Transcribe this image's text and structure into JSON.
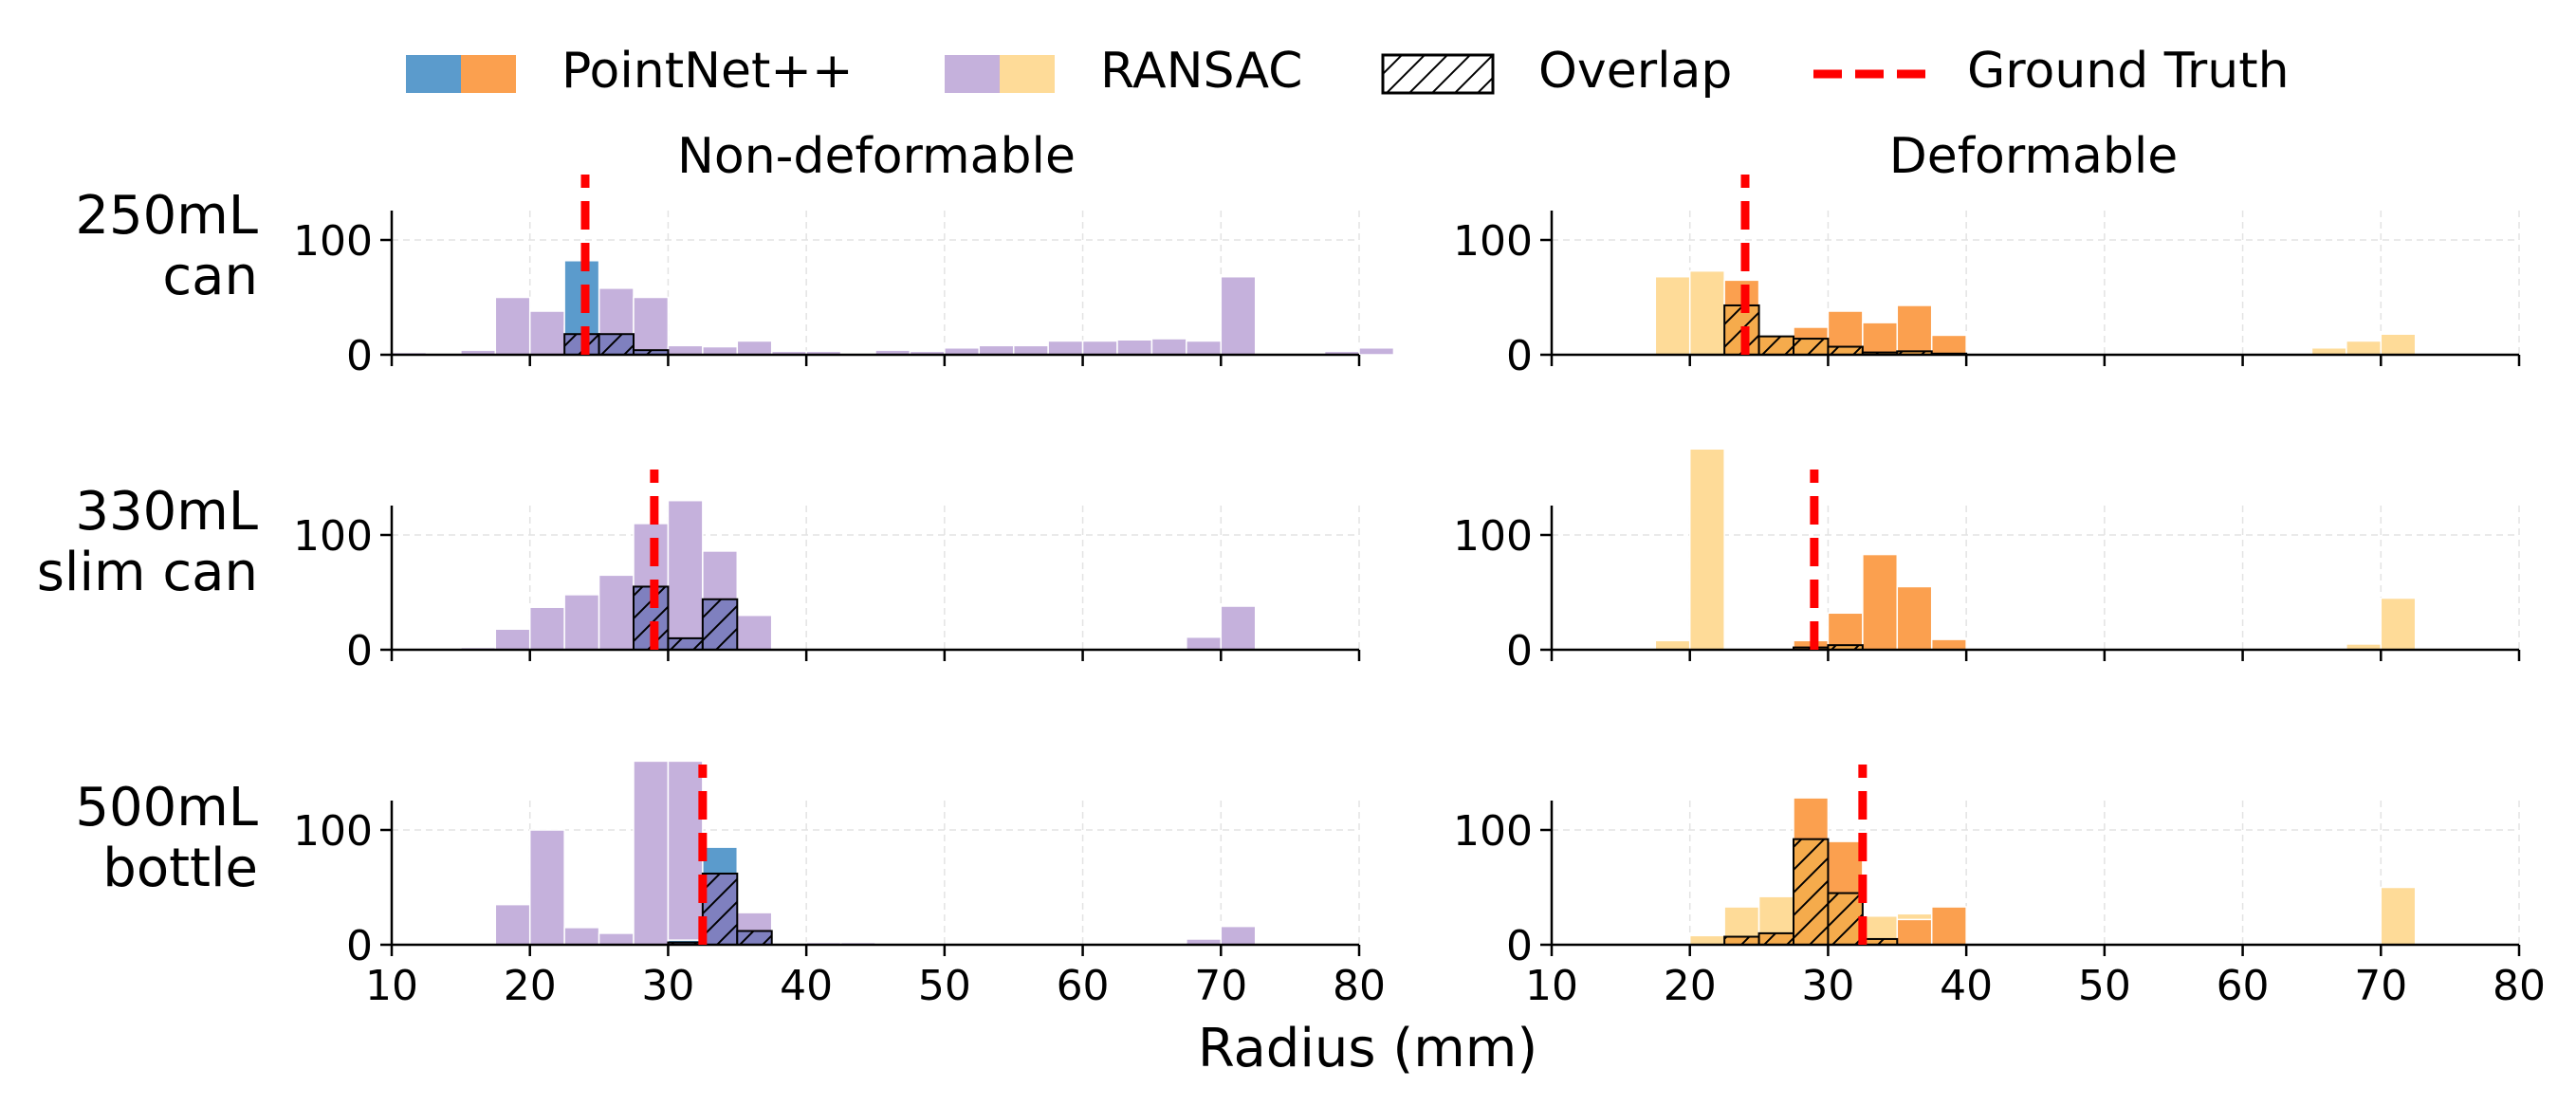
{
  "legend": {
    "pointnet_label": "PointNet++",
    "ransac_label": "RANSAC",
    "overlap_label": "Overlap",
    "gt_label": "Ground Truth"
  },
  "colors": {
    "pointnet_nondeformable": "#5b9bcc",
    "pointnet_deformable": "#fba04f",
    "ransac_nondeformable": "#c5b1dc",
    "ransac_deformable": "#fedb98",
    "overlap_nondeformable": "#7f80bf",
    "overlap_deformable": "#f5ab4c",
    "ground_truth": "#ff0000"
  },
  "columns": [
    "Non-deformable",
    "Deformable"
  ],
  "rows": [
    {
      "line1": "250mL",
      "line2": "can"
    },
    {
      "line1": "330mL",
      "line2": "slim can"
    },
    {
      "line1": "500mL",
      "line2": "bottle"
    }
  ],
  "xlabel": "Radius (mm)",
  "chart_data": {
    "type": "bar",
    "subtype": "overlaid histogram grid (3 rows x 2 columns)",
    "bin_width": 2.5,
    "xlim": [
      10,
      80
    ],
    "ylim": [
      0,
      180
    ],
    "xticks": [
      10,
      20,
      30,
      40,
      50,
      60,
      70,
      80
    ],
    "yticks": [
      0,
      100
    ],
    "grid": true,
    "legend_position": "top",
    "panels": [
      {
        "row": 0,
        "col": 0,
        "ground_truth": 24,
        "ransac": [
          [
            10,
            2
          ],
          [
            15,
            4
          ],
          [
            17.5,
            50
          ],
          [
            20,
            38
          ],
          [
            22.5,
            25
          ],
          [
            25,
            58
          ],
          [
            27.5,
            50
          ],
          [
            30,
            8
          ],
          [
            32.5,
            7
          ],
          [
            35,
            12
          ],
          [
            37.5,
            3
          ],
          [
            40,
            3
          ],
          [
            45,
            4
          ],
          [
            47.5,
            3
          ],
          [
            50,
            6
          ],
          [
            52.5,
            8
          ],
          [
            55,
            8
          ],
          [
            57.5,
            12
          ],
          [
            60,
            12
          ],
          [
            62.5,
            13
          ],
          [
            65,
            14
          ],
          [
            67.5,
            12
          ],
          [
            70,
            68
          ],
          [
            77.5,
            3
          ],
          [
            80,
            6
          ]
        ],
        "pointnet": [
          [
            22.5,
            82
          ],
          [
            25,
            18
          ],
          [
            27.5,
            4
          ]
        ],
        "overlap": [
          [
            22.5,
            18
          ],
          [
            25,
            18
          ],
          [
            27.5,
            4
          ]
        ]
      },
      {
        "row": 0,
        "col": 1,
        "ground_truth": 24,
        "ransac": [
          [
            17.5,
            68
          ],
          [
            20,
            73
          ],
          [
            22.5,
            52
          ],
          [
            25,
            13
          ],
          [
            27.5,
            14
          ],
          [
            30,
            7
          ],
          [
            32.5,
            2
          ],
          [
            35,
            3
          ],
          [
            37.5,
            1
          ],
          [
            40,
            1
          ],
          [
            65,
            6
          ],
          [
            67.5,
            12
          ],
          [
            70,
            18
          ]
        ],
        "pointnet": [
          [
            22.5,
            65
          ],
          [
            25,
            16
          ],
          [
            27.5,
            24
          ],
          [
            30,
            38
          ],
          [
            32.5,
            28
          ],
          [
            35,
            43
          ],
          [
            37.5,
            17
          ]
        ],
        "overlap": [
          [
            22.5,
            43
          ],
          [
            25,
            16
          ],
          [
            27.5,
            14
          ],
          [
            30,
            7
          ],
          [
            32.5,
            2
          ],
          [
            35,
            3
          ],
          [
            37.5,
            1
          ]
        ]
      },
      {
        "row": 1,
        "col": 0,
        "ground_truth": 29,
        "ransac": [
          [
            15,
            2
          ],
          [
            17.5,
            18
          ],
          [
            20,
            37
          ],
          [
            22.5,
            48
          ],
          [
            25,
            65
          ],
          [
            27.5,
            110
          ],
          [
            30,
            130
          ],
          [
            32.5,
            86
          ],
          [
            35,
            30
          ],
          [
            67.5,
            11
          ],
          [
            70,
            38
          ]
        ],
        "pointnet": [
          [
            27.5,
            55
          ],
          [
            30,
            10
          ],
          [
            32.5,
            44
          ]
        ],
        "overlap": [
          [
            27.5,
            55
          ],
          [
            30,
            10
          ],
          [
            32.5,
            44
          ]
        ]
      },
      {
        "row": 1,
        "col": 1,
        "ground_truth": 29,
        "ransac": [
          [
            17.5,
            8
          ],
          [
            20,
            175
          ],
          [
            27.5,
            2
          ],
          [
            30,
            4
          ],
          [
            67.5,
            5
          ],
          [
            70,
            45
          ]
        ],
        "pointnet": [
          [
            27.5,
            8
          ],
          [
            30,
            32
          ],
          [
            32.5,
            83
          ],
          [
            35,
            55
          ],
          [
            37.5,
            9
          ]
        ],
        "overlap": [
          [
            27.5,
            2
          ],
          [
            30,
            4
          ]
        ]
      },
      {
        "row": 2,
        "col": 0,
        "ground_truth": 32.5,
        "ransac": [
          [
            17.5,
            35
          ],
          [
            20,
            100
          ],
          [
            22.5,
            15
          ],
          [
            25,
            10
          ],
          [
            27.5,
            160
          ],
          [
            30,
            160
          ],
          [
            32.5,
            60
          ],
          [
            35,
            28
          ],
          [
            40,
            2
          ],
          [
            42.5,
            2
          ],
          [
            67.5,
            5
          ],
          [
            70,
            16
          ]
        ],
        "pointnet": [
          [
            30,
            4
          ],
          [
            32.5,
            85
          ],
          [
            35,
            12
          ]
        ],
        "overlap": [
          [
            30,
            2
          ],
          [
            32.5,
            62
          ],
          [
            35,
            12
          ]
        ]
      },
      {
        "row": 2,
        "col": 1,
        "ground_truth": 32.5,
        "ransac": [
          [
            20,
            8
          ],
          [
            22.5,
            33
          ],
          [
            25,
            42
          ],
          [
            27.5,
            92
          ],
          [
            30,
            45
          ],
          [
            32.5,
            25
          ],
          [
            35,
            27
          ],
          [
            37.5,
            18
          ],
          [
            70,
            50
          ]
        ],
        "pointnet": [
          [
            22.5,
            7
          ],
          [
            25,
            10
          ],
          [
            27.5,
            128
          ],
          [
            30,
            90
          ],
          [
            32.5,
            5
          ],
          [
            35,
            22
          ],
          [
            37.5,
            33
          ]
        ],
        "overlap": [
          [
            22.5,
            7
          ],
          [
            25,
            10
          ],
          [
            27.5,
            92
          ],
          [
            30,
            45
          ],
          [
            32.5,
            5
          ]
        ]
      }
    ]
  }
}
